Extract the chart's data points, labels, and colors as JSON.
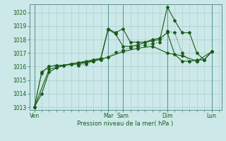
{
  "xlabel": "Pression niveau de la mer( hPa )",
  "bg_color": "#cce8e8",
  "grid_color": "#aacccc",
  "line_color": "#1a5c1a",
  "ylim": [
    1012.8,
    1020.6
  ],
  "yticks": [
    1013,
    1014,
    1015,
    1016,
    1017,
    1018,
    1019,
    1020
  ],
  "day_labels": [
    "Ven",
    "Mar",
    "Sam",
    "Dim",
    "Lun"
  ],
  "day_positions": [
    0,
    60,
    72,
    108,
    144
  ],
  "xlim": [
    -4,
    152
  ],
  "line1_x": [
    0,
    6,
    12,
    18,
    24,
    30,
    36,
    42,
    48,
    54,
    60,
    66,
    72,
    78,
    84,
    90,
    96,
    102,
    108,
    114,
    120,
    126,
    132,
    138,
    144
  ],
  "line1_y": [
    1013.0,
    1014.0,
    1015.6,
    1015.9,
    1016.1,
    1016.2,
    1016.3,
    1016.4,
    1016.5,
    1016.6,
    1018.8,
    1018.5,
    1018.8,
    1017.8,
    1017.8,
    1017.8,
    1017.9,
    1018.0,
    1020.4,
    1019.4,
    1018.5,
    1018.5,
    1017.0,
    1016.5,
    1017.1
  ],
  "line2_x": [
    0,
    6,
    12,
    18,
    24,
    30,
    36,
    42,
    48,
    54,
    60,
    66,
    72,
    78,
    84,
    90,
    96,
    102,
    108,
    114,
    120,
    126,
    132,
    138,
    144
  ],
  "line2_y": [
    1013.0,
    1015.6,
    1016.0,
    1016.1,
    1016.1,
    1016.2,
    1016.3,
    1016.3,
    1016.5,
    1016.6,
    1018.75,
    1018.4,
    1017.5,
    1017.5,
    1017.6,
    1017.8,
    1018.0,
    1018.1,
    1018.5,
    1016.9,
    1016.4,
    1016.4,
    1016.5,
    1016.5,
    1017.1
  ],
  "line3_x": [
    0,
    6,
    12,
    18,
    24,
    30,
    36,
    42,
    48,
    54,
    60,
    66,
    72,
    78,
    84,
    90,
    96,
    102,
    108,
    114,
    120,
    126,
    132,
    138,
    144
  ],
  "line3_y": [
    1013.0,
    1015.5,
    1016.0,
    1016.1,
    1016.1,
    1016.2,
    1016.1,
    1016.2,
    1016.4,
    1016.5,
    1016.7,
    1017.05,
    1017.2,
    1017.4,
    1017.5,
    1017.6,
    1017.7,
    1017.8,
    1018.6,
    1018.5,
    1017.0,
    1016.4,
    1016.4,
    1016.5,
    1017.1
  ],
  "line4_x": [
    0,
    12,
    24,
    36,
    48,
    60,
    72,
    84,
    96,
    108,
    120,
    132,
    144
  ],
  "line4_y": [
    1013.0,
    1015.8,
    1016.1,
    1016.2,
    1016.4,
    1016.7,
    1017.1,
    1017.35,
    1017.5,
    1017.0,
    1016.8,
    1016.4,
    1017.1
  ]
}
